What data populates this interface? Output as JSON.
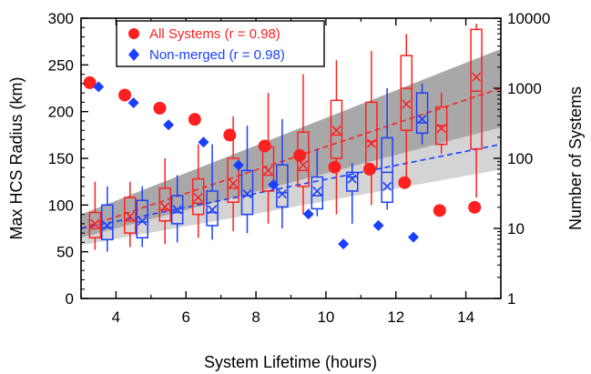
{
  "chart_data": {
    "type": "box-scatter",
    "xlabel": "System Lifetime (hours)",
    "ylabel": "Max HCS Radius (km)",
    "y2label": "Number of Systems",
    "xlim": [
      3,
      15
    ],
    "ylim": [
      0,
      300
    ],
    "y2lim": [
      1,
      10000
    ],
    "y2scale": "log",
    "xticks": [
      4,
      6,
      8,
      10,
      12,
      14
    ],
    "yticks": [
      0,
      50,
      100,
      150,
      200,
      250,
      300
    ],
    "y2ticks": [
      1,
      10,
      100,
      1000,
      10000
    ],
    "y2ticklabels": [
      "1",
      "10",
      "100",
      "1000",
      "10000"
    ],
    "legend": {
      "placement": "top-left",
      "entries": [
        {
          "label": "All Systems (r = 0.98)",
          "color": "#ff2020",
          "marker": "circle"
        },
        {
          "label": "Non-merged (r = 0.98)",
          "color": "#1a3fff",
          "marker": "diamond"
        }
      ]
    },
    "colors": {
      "all": "#ff2020",
      "nonmerged": "#1a3fff",
      "band_dark": "#a8a8a8",
      "band_light": "#d4d4d4"
    },
    "fit_lines": [
      {
        "series": "all",
        "x": [
          3,
          15
        ],
        "y": [
          75,
          225
        ]
      },
      {
        "series": "nonmerged",
        "x": [
          3,
          15
        ],
        "y": [
          75,
          165
        ]
      }
    ],
    "bands": [
      {
        "name": "dark",
        "x": [
          3,
          15
        ],
        "lower": [
          65,
          183
        ],
        "upper": [
          90,
          267
        ]
      },
      {
        "name": "light",
        "x": [
          3,
          15
        ],
        "lower": [
          57,
          138
        ],
        "upper": [
          65,
          183
        ]
      }
    ],
    "count_series": [
      {
        "name": "All Systems (r = 0.98)",
        "color": "#ff2020",
        "marker": "circle",
        "x": [
          3.25,
          4.25,
          5.25,
          6.25,
          7.25,
          8.25,
          9.25,
          10.25,
          11.25,
          12.25,
          13.25,
          14.25
        ],
        "y": [
          1200,
          800,
          520,
          360,
          215,
          150,
          110,
          75,
          70,
          45,
          18,
          20
        ]
      },
      {
        "name": "Non-merged (r = 0.98)",
        "color": "#1a3fff",
        "marker": "diamond",
        "x": [
          3.5,
          4.5,
          5.5,
          6.5,
          7.5,
          8.5,
          9.5,
          10.5,
          11.5,
          12.5
        ],
        "y": [
          1050,
          620,
          300,
          170,
          80,
          42,
          16,
          6,
          11,
          7.5
        ]
      }
    ],
    "boxes": [
      {
        "series": "all",
        "x": 3.4,
        "whisker_low": 52,
        "q1": 65,
        "median": 75,
        "q3": 92,
        "whisker_high": 125,
        "mean": 80
      },
      {
        "series": "all",
        "x": 4.4,
        "whisker_low": 55,
        "q1": 70,
        "median": 83,
        "q3": 108,
        "whisker_high": 125,
        "mean": 88
      },
      {
        "series": "all",
        "x": 5.4,
        "whisker_low": 58,
        "q1": 83,
        "median": 95,
        "q3": 118,
        "whisker_high": 150,
        "mean": 98
      },
      {
        "series": "all",
        "x": 6.35,
        "whisker_low": 65,
        "q1": 90,
        "median": 102,
        "q3": 128,
        "whisker_high": 165,
        "mean": 108
      },
      {
        "series": "all",
        "x": 7.35,
        "whisker_low": 72,
        "q1": 103,
        "median": 118,
        "q3": 150,
        "whisker_high": 195,
        "mean": 123
      },
      {
        "series": "all",
        "x": 8.35,
        "whisker_low": 80,
        "q1": 115,
        "median": 132,
        "q3": 162,
        "whisker_high": 220,
        "mean": 137
      },
      {
        "series": "all",
        "x": 9.35,
        "whisker_low": 90,
        "q1": 120,
        "median": 137,
        "q3": 178,
        "whisker_high": 240,
        "mean": 143
      },
      {
        "series": "all",
        "x": 10.3,
        "whisker_low": 90,
        "q1": 150,
        "median": 175,
        "q3": 212,
        "whisker_high": 255,
        "mean": 180
      },
      {
        "series": "all",
        "x": 11.3,
        "whisker_low": 100,
        "q1": 140,
        "median": 168,
        "q3": 210,
        "whisker_high": 265,
        "mean": 166
      },
      {
        "series": "all",
        "x": 12.3,
        "whisker_low": 120,
        "q1": 180,
        "median": 225,
        "q3": 260,
        "whisker_high": 283,
        "mean": 208
      },
      {
        "series": "all",
        "x": 13.3,
        "whisker_low": 155,
        "q1": 165,
        "median": 185,
        "q3": 205,
        "whisker_high": 220,
        "mean": 182
      },
      {
        "series": "all",
        "x": 14.3,
        "whisker_low": 108,
        "q1": 160,
        "median": 222,
        "q3": 288,
        "whisker_high": 294,
        "mean": 237
      },
      {
        "series": "nonmerged",
        "x": 3.75,
        "whisker_low": 50,
        "q1": 63,
        "median": 76,
        "q3": 100,
        "whisker_high": 120,
        "mean": 78
      },
      {
        "series": "nonmerged",
        "x": 4.75,
        "whisker_low": 55,
        "q1": 65,
        "median": 82,
        "q3": 105,
        "whisker_high": 120,
        "mean": 83
      },
      {
        "series": "nonmerged",
        "x": 5.75,
        "whisker_low": 60,
        "q1": 80,
        "median": 92,
        "q3": 110,
        "whisker_high": 132,
        "mean": 95
      },
      {
        "series": "nonmerged",
        "x": 6.75,
        "whisker_low": 63,
        "q1": 78,
        "median": 92,
        "q3": 115,
        "whisker_high": 165,
        "mean": 95
      },
      {
        "series": "nonmerged",
        "x": 7.75,
        "whisker_low": 70,
        "q1": 90,
        "median": 110,
        "q3": 137,
        "whisker_high": 185,
        "mean": 112
      },
      {
        "series": "nonmerged",
        "x": 8.75,
        "whisker_low": 75,
        "q1": 98,
        "median": 113,
        "q3": 143,
        "whisker_high": 192,
        "mean": 112
      },
      {
        "series": "nonmerged",
        "x": 9.75,
        "whisker_low": 88,
        "q1": 96,
        "median": 110,
        "q3": 130,
        "whisker_high": 160,
        "mean": 115
      },
      {
        "series": "nonmerged",
        "x": 10.75,
        "whisker_low": 80,
        "q1": 115,
        "median": 130,
        "q3": 135,
        "whisker_high": 145,
        "mean": 128
      },
      {
        "series": "nonmerged",
        "x": 11.75,
        "whisker_low": 95,
        "q1": 103,
        "median": 135,
        "q3": 172,
        "whisker_high": 225,
        "mean": 120
      },
      {
        "series": "nonmerged",
        "x": 12.75,
        "whisker_low": 165,
        "q1": 177,
        "median": 188,
        "q3": 220,
        "whisker_high": 230,
        "mean": 192
      }
    ]
  }
}
